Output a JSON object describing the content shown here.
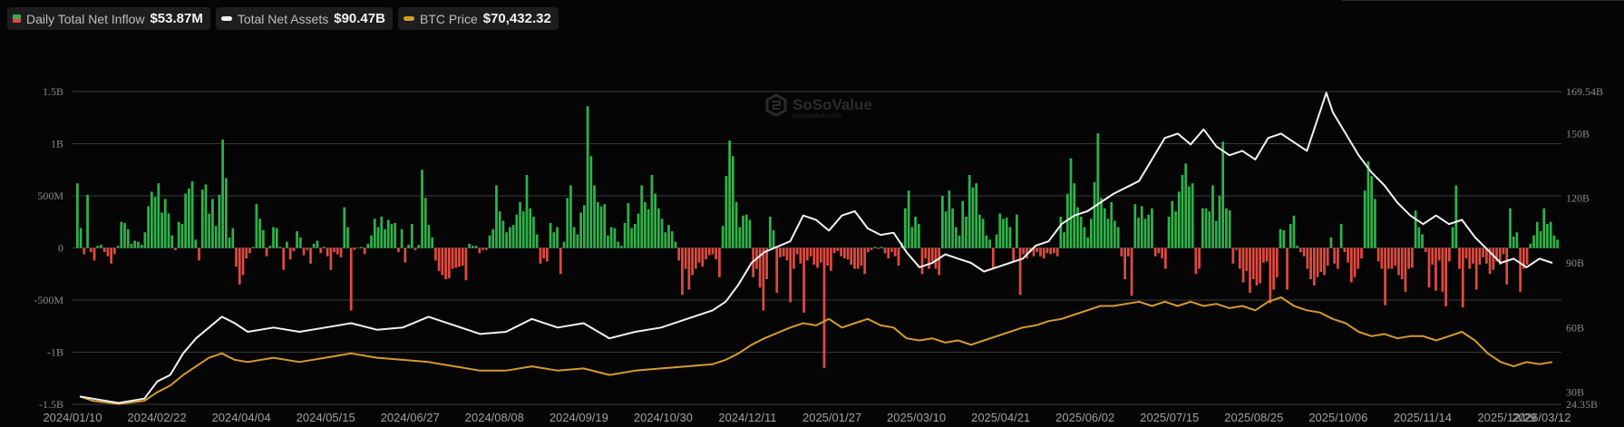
{
  "legend": [
    {
      "label": "Daily Total Net Inflow",
      "value": "$53.87M",
      "swatch": "bar",
      "colors": [
        "#2fb24a",
        "#e04a3f"
      ]
    },
    {
      "label": "Total Net Assets",
      "value": "$90.47B",
      "swatch": "line",
      "color": "#f2f2f2"
    },
    {
      "label": "BTC Price",
      "value": "$70,432.32",
      "swatch": "line",
      "color": "#d69a2d"
    }
  ],
  "watermark": {
    "name": "SoSoValue",
    "url": "sosovalue.com"
  },
  "chart_data": {
    "type": "bar+line",
    "title": "",
    "x_ticks": [
      "2024/01/10",
      "2024/02/22",
      "2024/04/04",
      "2024/05/15",
      "2024/06/27",
      "2024/08/08",
      "2024/09/19",
      "2024/10/30",
      "2024/12/11",
      "2025/01/27",
      "2025/03/10",
      "2025/04/21",
      "2025/06/02",
      "2025/07/15",
      "2025/08/25",
      "2025/10/06",
      "2025/11/14",
      "2025/12/29",
      "2026/03/12"
    ],
    "y_left": {
      "ticks": [
        "1.5B",
        "1B",
        "500M",
        "0",
        "-500M",
        "-1B",
        "-1.5B"
      ],
      "range": [
        -1500000000.0,
        1500000000.0
      ]
    },
    "y_right": {
      "ticks": [
        "169.54B",
        "150B",
        "120B",
        "90B",
        "60B",
        "30B",
        "24.35B"
      ],
      "tick_values": [
        169.54,
        150,
        120,
        90,
        60,
        30,
        24.35
      ],
      "range": [
        24.35,
        169.54
      ]
    },
    "grid": true,
    "colors": {
      "inflow_pos": "#2fb24a",
      "inflow_neg": "#e04a3f",
      "assets": "#f2f2f2",
      "btc": "#d69a2d",
      "grid": "#3a3a3a"
    },
    "series": [
      {
        "name": "Total Net Assets (B)",
        "axis": "right",
        "points": [
          [
            0,
            28
          ],
          [
            0.01,
            27
          ],
          [
            0.03,
            25
          ],
          [
            0.05,
            27
          ],
          [
            0.06,
            35
          ],
          [
            0.07,
            38
          ],
          [
            0.08,
            48
          ],
          [
            0.09,
            55
          ],
          [
            0.1,
            60
          ],
          [
            0.11,
            65
          ],
          [
            0.12,
            62
          ],
          [
            0.13,
            58
          ],
          [
            0.15,
            60
          ],
          [
            0.17,
            58
          ],
          [
            0.19,
            60
          ],
          [
            0.21,
            62
          ],
          [
            0.23,
            59
          ],
          [
            0.25,
            60
          ],
          [
            0.27,
            65
          ],
          [
            0.29,
            61
          ],
          [
            0.31,
            57
          ],
          [
            0.33,
            58
          ],
          [
            0.35,
            64
          ],
          [
            0.37,
            60
          ],
          [
            0.39,
            62
          ],
          [
            0.41,
            55
          ],
          [
            0.43,
            58
          ],
          [
            0.45,
            60
          ],
          [
            0.47,
            64
          ],
          [
            0.49,
            68
          ],
          [
            0.5,
            72
          ],
          [
            0.51,
            80
          ],
          [
            0.52,
            90
          ],
          [
            0.53,
            95
          ],
          [
            0.55,
            100
          ],
          [
            0.56,
            112
          ],
          [
            0.57,
            110
          ],
          [
            0.58,
            105
          ],
          [
            0.59,
            112
          ],
          [
            0.6,
            114
          ],
          [
            0.61,
            106
          ],
          [
            0.62,
            103
          ],
          [
            0.63,
            104
          ],
          [
            0.64,
            95
          ],
          [
            0.65,
            88
          ],
          [
            0.66,
            90
          ],
          [
            0.67,
            94
          ],
          [
            0.68,
            92
          ],
          [
            0.69,
            90
          ],
          [
            0.7,
            86
          ],
          [
            0.71,
            88
          ],
          [
            0.72,
            90
          ],
          [
            0.73,
            92
          ],
          [
            0.74,
            98
          ],
          [
            0.75,
            100
          ],
          [
            0.76,
            108
          ],
          [
            0.77,
            112
          ],
          [
            0.78,
            114
          ],
          [
            0.79,
            118
          ],
          [
            0.8,
            122
          ],
          [
            0.81,
            125
          ],
          [
            0.82,
            128
          ],
          [
            0.83,
            138
          ],
          [
            0.84,
            148
          ],
          [
            0.85,
            150
          ],
          [
            0.86,
            145
          ],
          [
            0.87,
            152
          ],
          [
            0.88,
            144
          ],
          [
            0.89,
            140
          ],
          [
            0.9,
            142
          ],
          [
            0.91,
            138
          ],
          [
            0.92,
            148
          ],
          [
            0.93,
            150
          ],
          [
            0.94,
            146
          ],
          [
            0.95,
            142
          ],
          [
            0.96,
            160
          ],
          [
            0.965,
            169
          ],
          [
            0.97,
            160
          ],
          [
            0.98,
            150
          ],
          [
            0.99,
            140
          ],
          [
            1.0,
            132
          ],
          [
            1.01,
            126
          ],
          [
            1.02,
            118
          ],
          [
            1.03,
            112
          ],
          [
            1.04,
            108
          ],
          [
            1.05,
            112
          ],
          [
            1.06,
            108
          ],
          [
            1.07,
            110
          ],
          [
            1.08,
            102
          ],
          [
            1.09,
            96
          ],
          [
            1.1,
            90
          ],
          [
            1.11,
            92
          ],
          [
            1.12,
            88
          ],
          [
            1.13,
            92
          ],
          [
            1.14,
            90
          ]
        ]
      },
      {
        "name": "BTC Price (B-scaled)",
        "axis": "right",
        "points": [
          [
            0,
            28
          ],
          [
            0.01,
            26
          ],
          [
            0.03,
            24.5
          ],
          [
            0.05,
            26
          ],
          [
            0.06,
            30
          ],
          [
            0.07,
            33
          ],
          [
            0.08,
            38
          ],
          [
            0.09,
            42
          ],
          [
            0.1,
            46
          ],
          [
            0.11,
            48
          ],
          [
            0.12,
            45
          ],
          [
            0.13,
            44
          ],
          [
            0.15,
            46
          ],
          [
            0.17,
            44
          ],
          [
            0.19,
            46
          ],
          [
            0.21,
            48
          ],
          [
            0.23,
            46
          ],
          [
            0.25,
            45
          ],
          [
            0.27,
            44
          ],
          [
            0.29,
            42
          ],
          [
            0.31,
            40
          ],
          [
            0.33,
            40
          ],
          [
            0.35,
            42
          ],
          [
            0.37,
            40
          ],
          [
            0.39,
            41
          ],
          [
            0.41,
            38
          ],
          [
            0.43,
            40
          ],
          [
            0.45,
            41
          ],
          [
            0.47,
            42
          ],
          [
            0.49,
            43
          ],
          [
            0.5,
            45
          ],
          [
            0.51,
            48
          ],
          [
            0.52,
            52
          ],
          [
            0.53,
            55
          ],
          [
            0.55,
            60
          ],
          [
            0.56,
            62
          ],
          [
            0.57,
            61
          ],
          [
            0.58,
            64
          ],
          [
            0.59,
            60
          ],
          [
            0.6,
            62
          ],
          [
            0.61,
            64
          ],
          [
            0.62,
            61
          ],
          [
            0.63,
            60
          ],
          [
            0.64,
            55
          ],
          [
            0.65,
            54
          ],
          [
            0.66,
            55
          ],
          [
            0.67,
            53
          ],
          [
            0.68,
            54
          ],
          [
            0.69,
            52
          ],
          [
            0.7,
            54
          ],
          [
            0.71,
            56
          ],
          [
            0.72,
            58
          ],
          [
            0.73,
            60
          ],
          [
            0.74,
            61
          ],
          [
            0.75,
            63
          ],
          [
            0.76,
            64
          ],
          [
            0.77,
            66
          ],
          [
            0.78,
            68
          ],
          [
            0.79,
            70
          ],
          [
            0.8,
            70
          ],
          [
            0.81,
            71
          ],
          [
            0.82,
            72
          ],
          [
            0.83,
            70
          ],
          [
            0.84,
            72
          ],
          [
            0.85,
            70
          ],
          [
            0.86,
            72
          ],
          [
            0.87,
            70
          ],
          [
            0.88,
            71
          ],
          [
            0.89,
            69
          ],
          [
            0.9,
            70
          ],
          [
            0.91,
            68
          ],
          [
            0.92,
            72
          ],
          [
            0.93,
            74
          ],
          [
            0.94,
            70
          ],
          [
            0.95,
            68
          ],
          [
            0.96,
            67
          ],
          [
            0.97,
            64
          ],
          [
            0.98,
            62
          ],
          [
            0.99,
            58
          ],
          [
            1.0,
            56
          ],
          [
            1.01,
            57
          ],
          [
            1.02,
            55
          ],
          [
            1.03,
            56
          ],
          [
            1.04,
            56
          ],
          [
            1.05,
            54
          ],
          [
            1.06,
            56
          ],
          [
            1.07,
            58
          ],
          [
            1.08,
            54
          ],
          [
            1.09,
            48
          ],
          [
            1.1,
            44
          ],
          [
            1.11,
            42
          ],
          [
            1.12,
            44
          ],
          [
            1.13,
            43
          ],
          [
            1.14,
            44
          ]
        ]
      },
      {
        "name": "Daily Total Net Inflow (M)",
        "axis": "left",
        "values": [
          620,
          190,
          -60,
          510,
          -40,
          -120,
          20,
          30,
          -40,
          -80,
          -150,
          -60,
          20,
          250,
          240,
          180,
          40,
          70,
          60,
          30,
          150,
          400,
          540,
          490,
          620,
          340,
          470,
          330,
          120,
          -20,
          250,
          230,
          520,
          570,
          640,
          80,
          -120,
          560,
          610,
          330,
          470,
          210,
          510,
          1040,
          670,
          100,
          190,
          -180,
          -350,
          -260,
          -100,
          -50,
          10,
          420,
          280,
          170,
          -80,
          20,
          200,
          190,
          10,
          -210,
          60,
          -110,
          -30,
          160,
          100,
          -70,
          -20,
          -150,
          40,
          70,
          -50,
          10,
          -80,
          -210,
          -40,
          -60,
          -90,
          390,
          200,
          -600,
          -20,
          5,
          10,
          -60,
          40,
          120,
          280,
          200,
          300,
          180,
          270,
          230,
          240,
          -40,
          180,
          -140,
          30,
          230,
          -20,
          30,
          750,
          480,
          220,
          100,
          -120,
          -220,
          -260,
          -300,
          -290,
          -200,
          -190,
          -180,
          -170,
          -310,
          40,
          20,
          20,
          -50,
          -20,
          -20,
          120,
          180,
          600,
          350,
          260,
          150,
          200,
          220,
          320,
          440,
          350,
          700,
          380,
          300,
          130,
          -150,
          -100,
          -130,
          240,
          150,
          200,
          -250,
          60,
          480,
          600,
          200,
          130,
          340,
          410,
          1360,
          880,
          600,
          440,
          400,
          420,
          120,
          200,
          190,
          60,
          20,
          240,
          430,
          190,
          230,
          330,
          600,
          440,
          370,
          700,
          520,
          380,
          280,
          150,
          220,
          160,
          60,
          -120,
          -450,
          -200,
          -400,
          -260,
          -200,
          -140,
          -180,
          -110,
          -70,
          -60,
          -110,
          -280,
          210,
          690,
          1030,
          880,
          440,
          200,
          310,
          320,
          270,
          -280,
          -200,
          -380,
          -600,
          -300,
          300,
          170,
          -430,
          -90,
          -80,
          -120,
          -520,
          -200,
          -60,
          -150,
          -620,
          -120,
          -80,
          -160,
          -190,
          -140,
          -1150,
          -170,
          -220,
          -50,
          -30,
          -80,
          -100,
          -110,
          -160,
          -200,
          -200,
          -170,
          -250,
          -40,
          -20,
          10,
          -10,
          10,
          -50,
          -100,
          -40,
          -80,
          -170,
          50,
          380,
          550,
          200,
          300,
          230,
          -250,
          -100,
          -200,
          -130,
          -200,
          -260,
          500,
          350,
          550,
          380,
          200,
          120,
          450,
          300,
          700,
          580,
          620,
          320,
          280,
          120,
          80,
          -200,
          130,
          330,
          280,
          290,
          200,
          -140,
          320,
          -450,
          -60,
          -100,
          -40,
          -80,
          -40,
          -80,
          -100,
          -50,
          -60,
          -50,
          -80,
          300,
          150,
          520,
          860,
          620,
          390,
          300,
          200,
          100,
          280,
          630,
          1100,
          480,
          380,
          280,
          440,
          260,
          200,
          -80,
          -300,
          -80,
          -460,
          420,
          290,
          400,
          280,
          320,
          380,
          -80,
          -50,
          -100,
          -200,
          300,
          450,
          350,
          540,
          700,
          810,
          590,
          620,
          -250,
          -200,
          380,
          380,
          350,
          600,
          260,
          500,
          1020,
          380,
          360,
          -150,
          -20,
          -200,
          -330,
          -220,
          -430,
          -300,
          -360,
          -340,
          -140,
          -130,
          -530,
          -400,
          -280,
          180,
          170,
          -400,
          230,
          310,
          20,
          -40,
          -80,
          -200,
          -300,
          -360,
          -280,
          -230,
          -260,
          -170,
          100,
          -150,
          -200,
          230,
          -40,
          -140,
          -330,
          -280,
          -200,
          -100,
          550,
          830,
          690,
          470,
          -130,
          -200,
          -550,
          -200,
          -200,
          -170,
          -260,
          -300,
          -420,
          -200,
          -190,
          360,
          200,
          130,
          -40,
          -380,
          -160,
          -410,
          -120,
          -420,
          -560,
          -130,
          200,
          600,
          -200,
          -570,
          -100,
          -200,
          -150,
          -400,
          -160,
          -90,
          -150,
          -250,
          -210,
          -130,
          -160,
          -60,
          -350,
          380,
          110,
          150,
          -420,
          -200,
          -160,
          40,
          120,
          250,
          160,
          380,
          230,
          250,
          120,
          80
        ]
      }
    ]
  }
}
